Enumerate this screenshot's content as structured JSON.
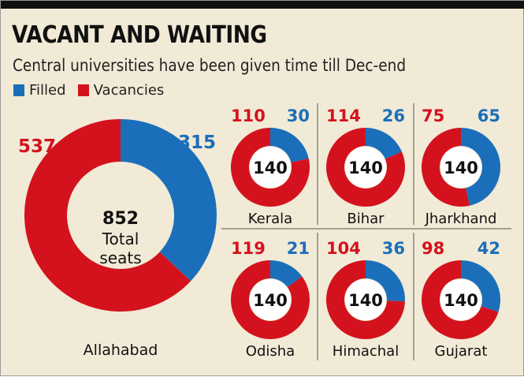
{
  "title": "VACANT AND WAITING",
  "subtitle": "Central universities have been given time till Dec-end",
  "colors": {
    "filled": "#1b6fba",
    "vacancies": "#d4121e",
    "background": "#f1ead6"
  },
  "legend": [
    {
      "label": "Filled",
      "key": "filled"
    },
    {
      "label": "Vacancies",
      "key": "vacancies"
    }
  ],
  "chart_data": {
    "type": "donut",
    "series": [
      "Filled",
      "Vacancies"
    ],
    "charts": [
      {
        "name": "Allahabad",
        "filled": 315,
        "vacancies": 537,
        "total": 852,
        "center_text": [
          "852",
          "Total",
          "seats"
        ]
      },
      {
        "name": "Kerala",
        "filled": 30,
        "vacancies": 110,
        "total": 140,
        "center_text": [
          "140"
        ]
      },
      {
        "name": "Bihar",
        "filled": 26,
        "vacancies": 114,
        "total": 140,
        "center_text": [
          "140"
        ]
      },
      {
        "name": "Jharkhand",
        "filled": 65,
        "vacancies": 75,
        "total": 140,
        "center_text": [
          "140"
        ]
      },
      {
        "name": "Odisha",
        "filled": 21,
        "vacancies": 119,
        "total": 140,
        "center_text": [
          "140"
        ]
      },
      {
        "name": "Himachal",
        "filled": 36,
        "vacancies": 104,
        "total": 140,
        "center_text": [
          "140"
        ]
      },
      {
        "name": "Gujarat",
        "filled": 42,
        "vacancies": 98,
        "total": 140,
        "center_text": [
          "140"
        ]
      }
    ]
  }
}
